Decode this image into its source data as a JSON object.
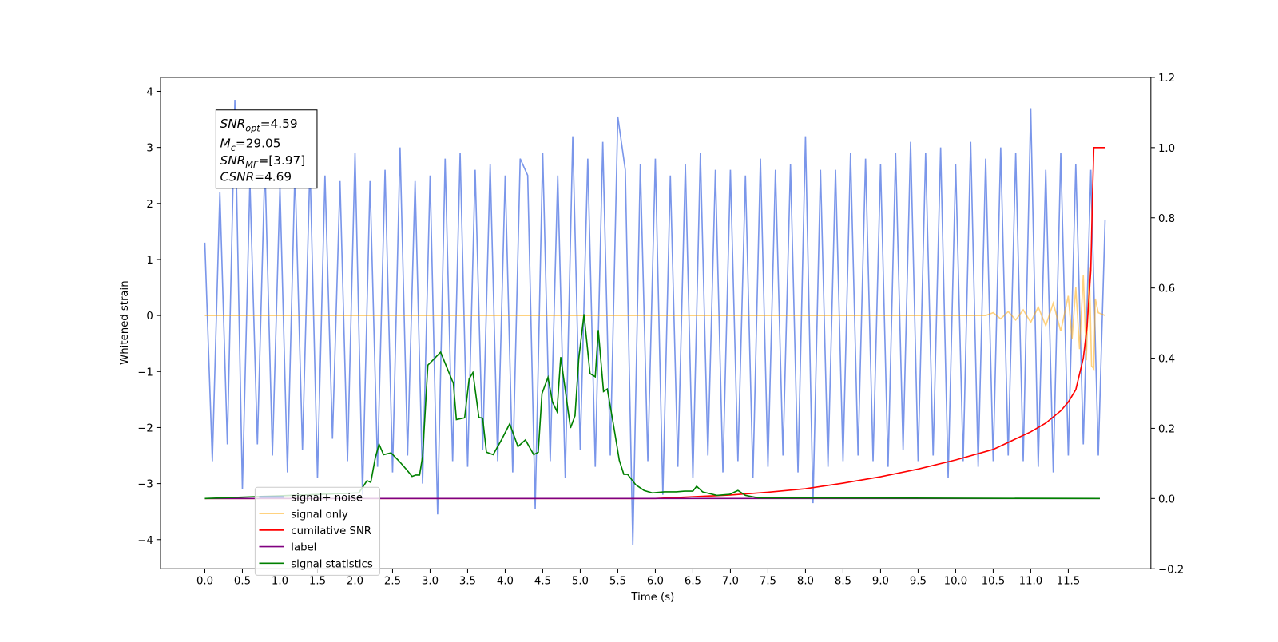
{
  "chart_data": {
    "type": "line",
    "xlabel": "Time (s)",
    "ylabel": "Whitened strain",
    "xlim": [
      -0.59,
      12.6
    ],
    "ylim": [
      -4.52,
      4.25
    ],
    "y2lim": [
      -0.2,
      1.2
    ],
    "xticks": [
      {
        "value": 0,
        "label": "0.0"
      },
      0.5,
      {
        "value": 1,
        "label": "1.0"
      },
      1.5,
      {
        "value": 2,
        "label": "2.0"
      },
      2.5,
      {
        "value": 3,
        "label": "3.0"
      },
      3.5,
      {
        "value": 4,
        "label": "4.0"
      },
      4.5,
      {
        "value": 5,
        "label": "5.0"
      },
      5.5,
      {
        "value": 6,
        "label": "6.0"
      },
      6.5,
      {
        "value": 7,
        "label": "7.0"
      },
      7.5,
      {
        "value": 8,
        "label": "8.0"
      },
      8.5,
      {
        "value": 9,
        "label": "9.0"
      },
      9.5,
      {
        "value": 10,
        "label": "10.0"
      },
      10.5,
      {
        "value": 11,
        "label": "11.0"
      },
      11.5
    ],
    "yticks": [
      {
        "value": -4,
        "label": "−4"
      },
      {
        "value": -3,
        "label": "−3"
      },
      {
        "value": -2,
        "label": "−2"
      },
      {
        "value": -1,
        "label": "−1"
      },
      0,
      1,
      2,
      3,
      4
    ],
    "y2ticks": [
      {
        "value": -0.2,
        "label": "−0.2"
      },
      {
        "value": 0,
        "label": "0.0"
      },
      0.2,
      0.4,
      0.6,
      0.8,
      {
        "value": 1,
        "label": "1.0"
      },
      1.2
    ],
    "annotation": [
      {
        "symbol": "SNR",
        "subscript": "opt",
        "text": "=4.59"
      },
      {
        "symbol": "M",
        "subscript": "c",
        "text": "=29.05"
      },
      {
        "symbol": "SNR",
        "subscript": "MF",
        "text": "=[3.97]"
      },
      {
        "symbol": "CSNR",
        "subscript": null,
        "text": "=4.69"
      }
    ],
    "legend": "lower left",
    "series": [
      {
        "name": "signal+ noise",
        "color": "#4169e1",
        "alpha": 0.7,
        "x": [
          0,
          0.1,
          0.2,
          0.3,
          0.4,
          0.5,
          0.6,
          0.7,
          0.8,
          0.9,
          1,
          1.1,
          1.2,
          1.3,
          1.4,
          1.5,
          1.6,
          1.7,
          1.8,
          1.9,
          2,
          2.1,
          2.2,
          2.3,
          2.4,
          2.5,
          2.6,
          2.7,
          2.8,
          2.9,
          3,
          3.1,
          3.2,
          3.3,
          3.4,
          3.5,
          3.6,
          3.7,
          3.8,
          3.9,
          4,
          4.1,
          4.2,
          4.3,
          4.4,
          4.5,
          4.6,
          4.7,
          4.8,
          4.9,
          5,
          5.1,
          5.2,
          5.3,
          5.4,
          5.5,
          5.6,
          5.7,
          5.8,
          5.9,
          6,
          6.1,
          6.2,
          6.3,
          6.4,
          6.5,
          6.6,
          6.7,
          6.8,
          6.9,
          7,
          7.1,
          7.2,
          7.3,
          7.4,
          7.5,
          7.6,
          7.7,
          7.8,
          7.9,
          8,
          8.1,
          8.2,
          8.3,
          8.4,
          8.5,
          8.6,
          8.7,
          8.8,
          8.9,
          9,
          9.1,
          9.2,
          9.3,
          9.4,
          9.5,
          9.6,
          9.7,
          9.8,
          9.9,
          10,
          10.1,
          10.2,
          10.3,
          10.4,
          10.5,
          10.6,
          10.7,
          10.8,
          10.9,
          11,
          11.1,
          11.2,
          11.3,
          11.4,
          11.5,
          11.6,
          11.7,
          11.8,
          11.9,
          11.99
        ],
        "values": [
          1.3,
          -2.6,
          2.2,
          -2.3,
          3.85,
          -3.1,
          2.4,
          -2.3,
          2.7,
          -2.5,
          2.3,
          -2.8,
          2.6,
          -2.4,
          2.7,
          -2.9,
          2.5,
          -2.2,
          2.4,
          -2.6,
          2.9,
          -3.2,
          2.4,
          -2.7,
          2.6,
          -2.8,
          3.0,
          -2.5,
          2.4,
          -3.0,
          2.5,
          -3.55,
          2.8,
          -2.6,
          2.9,
          -2.7,
          2.6,
          -2.4,
          2.7,
          -2.6,
          2.5,
          -2.8,
          2.8,
          2.5,
          -3.45,
          2.9,
          -2.6,
          2.5,
          -2.9,
          3.2,
          -2.4,
          2.8,
          -2.7,
          3.1,
          -2.5,
          3.55,
          2.6,
          -4.1,
          2.7,
          -2.6,
          2.8,
          -3.2,
          2.5,
          -2.7,
          2.7,
          -2.9,
          2.9,
          -2.5,
          2.6,
          -2.8,
          2.6,
          -2.6,
          2.5,
          -2.9,
          2.8,
          -2.7,
          2.6,
          -2.5,
          2.7,
          -2.8,
          3.2,
          -3.35,
          2.6,
          -2.7,
          2.6,
          -2.6,
          2.9,
          -2.5,
          2.8,
          -2.6,
          2.7,
          -2.7,
          2.9,
          -2.4,
          3.1,
          -2.6,
          2.9,
          -2.5,
          3.0,
          -2.9,
          2.7,
          -2.6,
          3.1,
          -2.7,
          2.8,
          -2.6,
          3.0,
          -2.5,
          2.9,
          -2.6,
          3.7,
          -2.7,
          2.6,
          -2.8,
          2.9,
          -2.5,
          2.7,
          -2.3,
          2.6,
          -2.5,
          1.7
        ]
      },
      {
        "name": "signal only",
        "color": "#ffa500",
        "alpha": 0.5,
        "x": [
          0,
          10.4,
          10.5,
          10.6,
          10.7,
          10.8,
          10.9,
          11,
          11.1,
          11.2,
          11.3,
          11.4,
          11.5,
          11.55,
          11.6,
          11.65,
          11.7,
          11.74,
          11.78,
          11.81,
          11.84,
          11.86,
          11.9,
          11.99
        ],
        "values": [
          0,
          0,
          0.05,
          -0.06,
          0.07,
          -0.08,
          0.1,
          -0.12,
          0.15,
          -0.18,
          0.22,
          -0.28,
          0.35,
          -0.42,
          0.5,
          -0.6,
          0.72,
          -0.8,
          0.85,
          -0.9,
          -0.95,
          0.3,
          0.05,
          0
        ]
      },
      {
        "name": "cumilative SNR",
        "color": "#ff0000",
        "axis": "y2",
        "x": [
          0,
          6,
          7,
          7.5,
          8,
          8.5,
          9,
          9.5,
          10,
          10.5,
          11,
          11.2,
          11.4,
          11.5,
          11.6,
          11.7,
          11.75,
          11.8,
          11.82,
          11.84,
          11.99
        ],
        "values": [
          0,
          0,
          0.01,
          0.018,
          0.028,
          0.044,
          0.062,
          0.084,
          0.11,
          0.14,
          0.19,
          0.215,
          0.25,
          0.275,
          0.31,
          0.4,
          0.49,
          0.65,
          0.84,
          1.0,
          1.0
        ]
      },
      {
        "name": "label",
        "color": "#800080",
        "axis": "y2",
        "x": [
          0,
          11.92
        ],
        "values": [
          0,
          0
        ]
      },
      {
        "name": "signal statistics",
        "color": "#008000",
        "axis": "y2",
        "x": [
          0,
          2.05,
          2.16,
          2.21,
          2.27,
          2.32,
          2.38,
          2.48,
          2.59,
          2.7,
          2.76,
          2.81,
          2.86,
          2.9,
          2.97,
          3.14,
          3.31,
          3.35,
          3.46,
          3.52,
          3.57,
          3.65,
          3.7,
          3.75,
          3.84,
          3.95,
          4.06,
          4.17,
          4.27,
          4.38,
          4.44,
          4.49,
          4.57,
          4.63,
          4.69,
          4.74,
          4.87,
          4.93,
          4.98,
          5.05,
          5.13,
          5.2,
          5.24,
          5.31,
          5.36,
          5.44,
          5.52,
          5.58,
          5.63,
          5.74,
          5.85,
          5.96,
          6.12,
          6.28,
          6.39,
          6.5,
          6.55,
          6.63,
          6.82,
          6.99,
          7.1,
          7.2,
          7.37,
          11.92
        ],
        "values": [
          0,
          0.016,
          0.051,
          0.046,
          0.116,
          0.155,
          0.125,
          0.13,
          0.106,
          0.079,
          0.063,
          0.067,
          0.067,
          0.12,
          0.38,
          0.417,
          0.328,
          0.225,
          0.23,
          0.341,
          0.359,
          0.231,
          0.229,
          0.132,
          0.125,
          0.167,
          0.213,
          0.148,
          0.167,
          0.125,
          0.132,
          0.299,
          0.345,
          0.275,
          0.248,
          0.403,
          0.201,
          0.236,
          0.398,
          0.525,
          0.356,
          0.347,
          0.48,
          0.305,
          0.312,
          0.213,
          0.109,
          0.069,
          0.069,
          0.039,
          0.023,
          0.016,
          0.019,
          0.019,
          0.021,
          0.021,
          0.035,
          0.019,
          0.009,
          0.012,
          0.023,
          0.009,
          0.002,
          0
        ]
      }
    ]
  }
}
